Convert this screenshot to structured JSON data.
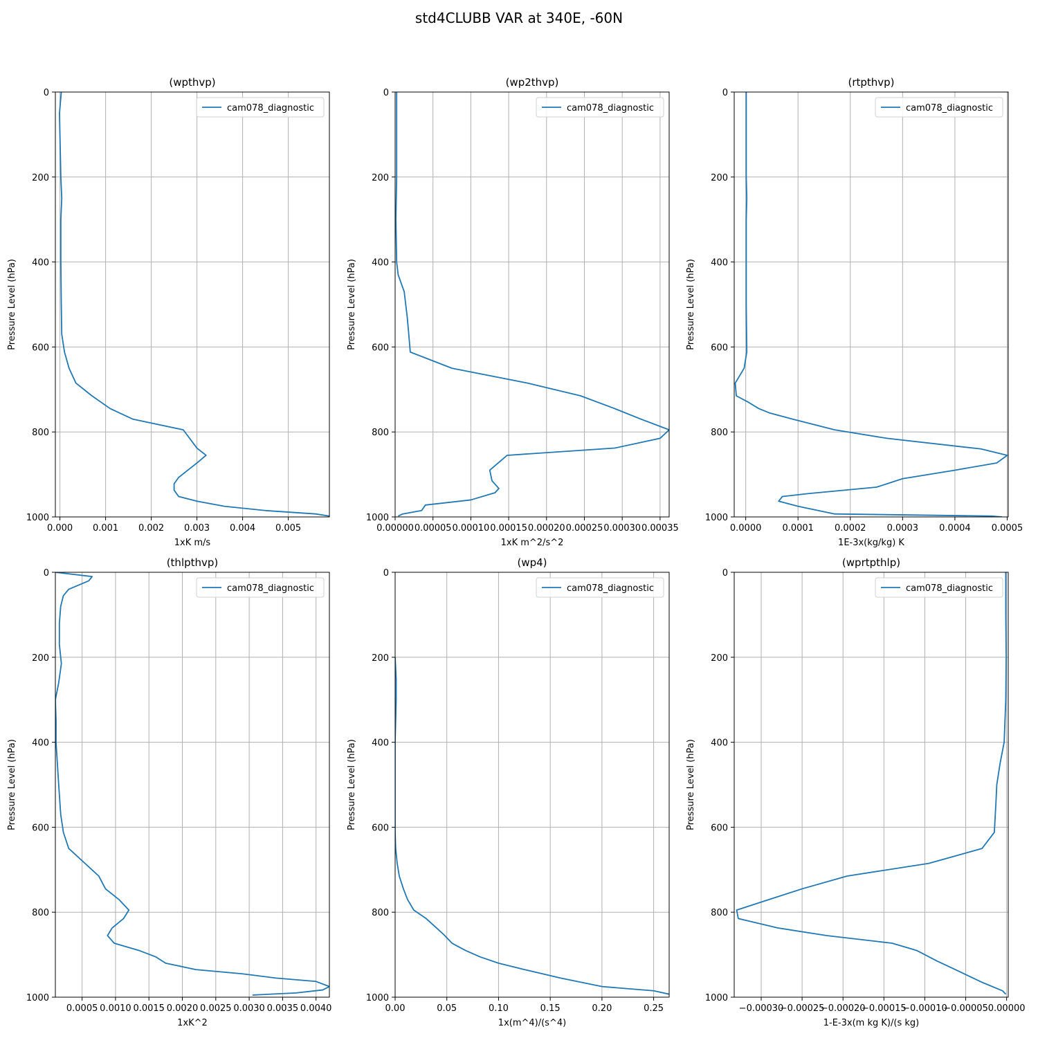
{
  "title": "std4CLUBB VAR at 340E, -60N",
  "chart_data": [
    {
      "type": "line",
      "title": "(wpthvp)",
      "xlabel": "1xK m/s",
      "ylabel": "Pressure Level (hPa)",
      "xlim": [
        -0.0001,
        0.0059
      ],
      "ylim": [
        1000,
        0
      ],
      "xticks": [
        0.0,
        0.001,
        0.002,
        0.003,
        0.004,
        0.005
      ],
      "xtick_labels": [
        "0.000",
        "0.001",
        "0.002",
        "0.003",
        "0.004",
        "0.005"
      ],
      "yticks": [
        0,
        200,
        400,
        600,
        800,
        1000
      ],
      "grid": true,
      "legend_position": "top-right",
      "series": [
        {
          "name": "cam078_diagnostic",
          "x": [
            3e-05,
            -1e-05,
            2e-05,
            4e-05,
            2e-05,
            2e-05,
            3e-05,
            4e-05,
            0.0001,
            0.0002,
            0.00035,
            0.0007,
            0.0011,
            0.0016,
            0.0027,
            0.003,
            0.0032,
            0.003,
            0.0028,
            0.0026,
            0.0025,
            0.0025,
            0.0026,
            0.003,
            0.0036,
            0.0045,
            0.0056,
            0.0059
          ],
          "y": [
            0,
            50,
            200,
            250,
            300,
            400,
            500,
            570,
            612,
            650,
            685,
            715,
            745,
            770,
            795,
            838,
            855,
            873,
            890,
            907,
            922,
            937,
            952,
            963,
            975,
            985,
            993,
            998
          ]
        }
      ]
    },
    {
      "type": "line",
      "title": "(wp2thvp)",
      "xlabel": "1xK m^2/s^2",
      "ylabel": "Pressure Level (hPa)",
      "xlim": [
        0.0,
        0.000362
      ],
      "ylim": [
        1000,
        0
      ],
      "xticks": [
        0.0,
        5e-05,
        0.0001,
        0.00015,
        0.0002,
        0.00025,
        0.0003,
        0.00035
      ],
      "xtick_labels": [
        "0.00000",
        "0.00005",
        "0.00010",
        "0.00015",
        "0.00020",
        "0.00025",
        "0.00030",
        "0.00035"
      ],
      "yticks": [
        0,
        200,
        400,
        600,
        800,
        1000
      ],
      "grid": true,
      "legend_position": "top-right",
      "series": [
        {
          "name": "cam078_diagnostic",
          "x": [
            2e-06,
            2e-06,
            2e-06,
            1.5e-06,
            1e-06,
            2e-06,
            4e-06,
            1.2e-05,
            1.6e-05,
            1.8e-05,
            2e-05,
            7.5e-05,
            0.000175,
            0.000245,
            0.00029,
            0.000325,
            0.000362,
            0.00035,
            0.00029,
            0.000148,
            0.000125,
            0.000128,
            0.000137,
            0.000132,
            0.0001,
            4e-05,
            3.5e-05,
            1e-05,
            4e-06
          ],
          "y": [
            0,
            100,
            200,
            250,
            300,
            400,
            430,
            470,
            530,
            570,
            612,
            650,
            685,
            715,
            745,
            770,
            795,
            815,
            838,
            855,
            890,
            915,
            933,
            943,
            960,
            972,
            985,
            993,
            998
          ]
        }
      ]
    },
    {
      "type": "line",
      "title": "(rtpthvp)",
      "xlabel": "1E-3x(kg/kg) K",
      "ylabel": "Pressure Level (hPa)",
      "xlim": [
        -2.2e-05,
        0.000502
      ],
      "ylim": [
        1000,
        0
      ],
      "xticks": [
        0.0,
        0.0001,
        0.0002,
        0.0003,
        0.0004,
        0.0005
      ],
      "xtick_labels": [
        "0.0000",
        "0.0001",
        "0.0002",
        "0.0003",
        "0.0004",
        "0.0005"
      ],
      "yticks": [
        0,
        200,
        400,
        600,
        800,
        1000
      ],
      "grid": true,
      "legend_position": "top-right",
      "series": [
        {
          "name": "cam078_diagnostic",
          "x": [
            1e-06,
            1e-06,
            1e-06,
            2e-06,
            1e-06,
            1e-06,
            1e-06,
            2e-06,
            -3e-06,
            -2e-05,
            -1.8e-05,
            5e-06,
            2.5e-05,
            4.5e-05,
            9e-05,
            0.00017,
            0.00027,
            0.00045,
            0.0005,
            0.00048,
            0.0004,
            0.0003,
            0.00025,
            0.00012,
            7e-05,
            6.3e-05,
            0.0001,
            0.00017,
            0.00047,
            0.00049
          ],
          "y": [
            0,
            100,
            200,
            250,
            300,
            400,
            500,
            612,
            650,
            685,
            715,
            730,
            745,
            755,
            770,
            795,
            815,
            840,
            855,
            873,
            890,
            910,
            930,
            945,
            952,
            963,
            975,
            993,
            998,
            1000
          ]
        }
      ]
    },
    {
      "type": "line",
      "title": "(thlpthvp)",
      "xlabel": "1xK^2",
      "ylabel": "Pressure Level (hPa)",
      "xlim": [
        0.0001,
        0.0042
      ],
      "ylim": [
        1000,
        0
      ],
      "xticks": [
        0.0005,
        0.001,
        0.0015,
        0.002,
        0.0025,
        0.003,
        0.0035,
        0.004
      ],
      "xtick_labels": [
        "0.0005",
        "0.0010",
        "0.0015",
        "0.0020",
        "0.0025",
        "0.0030",
        "0.0035",
        "0.0040"
      ],
      "yticks": [
        0,
        200,
        400,
        600,
        800,
        1000
      ],
      "grid": true,
      "legend_position": "top-right",
      "series": [
        {
          "name": "cam078_diagnostic",
          "x": [
            0.0001,
            0.00065,
            0.0006,
            0.00045,
            0.0003,
            0.00022,
            0.00018,
            0.00016,
            0.00016,
            0.00019,
            0.00015,
            0.0001,
            0.00011,
            0.00011,
            0.00015,
            0.00018,
            0.00022,
            0.0003,
            0.00075,
            0.00085,
            0.00105,
            0.0012,
            0.00112,
            0.00095,
            0.00088,
            0.00098,
            0.00135,
            0.0016,
            0.00175,
            0.0022,
            0.0029,
            0.0034,
            0.004,
            0.0042,
            0.0041,
            0.0037,
            0.00305
          ],
          "y": [
            0,
            10,
            20,
            30,
            40,
            55,
            80,
            120,
            170,
            215,
            260,
            300,
            350,
            400,
            500,
            570,
            612,
            650,
            715,
            745,
            770,
            795,
            815,
            837,
            855,
            873,
            890,
            905,
            920,
            935,
            945,
            955,
            963,
            975,
            983,
            990,
            995
          ]
        }
      ]
    },
    {
      "type": "line",
      "title": "(wp4)",
      "xlabel": "1x(m^4)/(s^4)",
      "ylabel": "Pressure Level (hPa)",
      "xlim": [
        0.0,
        0.265
      ],
      "ylim": [
        1000,
        0
      ],
      "xticks": [
        0.0,
        0.05,
        0.1,
        0.15,
        0.2,
        0.25
      ],
      "xtick_labels": [
        "0.00",
        "0.05",
        "0.10",
        "0.15",
        "0.20",
        "0.25"
      ],
      "yticks": [
        0,
        200,
        400,
        600,
        800,
        1000
      ],
      "grid": true,
      "legend_position": "top-right",
      "series": [
        {
          "name": "cam078_diagnostic",
          "x": [
            0.0,
            0.001,
            0.001,
            0.0,
            0.0,
            0.0,
            0.0,
            0.0,
            0.0005,
            0.002,
            0.004,
            0.008,
            0.012,
            0.018,
            0.03,
            0.04,
            0.048,
            0.055,
            0.068,
            0.082,
            0.1,
            0.125,
            0.16,
            0.2,
            0.25,
            0.265
          ],
          "y": [
            200,
            250,
            300,
            400,
            500,
            570,
            600,
            612,
            650,
            685,
            715,
            745,
            770,
            795,
            815,
            837,
            855,
            873,
            890,
            905,
            920,
            935,
            955,
            975,
            985,
            993
          ]
        }
      ]
    },
    {
      "type": "line",
      "title": "(wprtpthlp)",
      "xlabel": "1-E-3x(m kg K)/(s kg)",
      "ylabel": "Pressure Level (hPa)",
      "xlim": [
        -0.000333,
        2e-06
      ],
      "ylim": [
        1000,
        0
      ],
      "xticks": [
        -0.0003,
        -0.00025,
        -0.0002,
        -0.00015,
        -0.0001,
        -5e-05,
        0.0
      ],
      "xtick_labels": [
        "−0.00030",
        "−0.00025",
        "−0.00020",
        "−0.00015",
        "−0.00010",
        "−0.00005",
        "0.00000"
      ],
      "yticks": [
        0,
        200,
        400,
        600,
        800,
        1000
      ],
      "grid": true,
      "legend_position": "top-right",
      "series": [
        {
          "name": "cam078_diagnostic",
          "x": [
            -1e-06,
            -1e-06,
            -5e-07,
            -1e-06,
            -3e-06,
            -8e-06,
            -1.2e-05,
            -1.3e-05,
            -1.5e-05,
            -3e-05,
            -9.5e-05,
            -0.000195,
            -0.00025,
            -0.00029,
            -0.00033,
            -0.000328,
            -0.00028,
            -0.00022,
            -0.00014,
            -0.00011,
            -8.5e-05,
            -6.5e-05,
            -3e-05,
            -5e-06,
            -1e-06
          ],
          "y": [
            0,
            100,
            200,
            300,
            400,
            450,
            500,
            540,
            612,
            650,
            685,
            715,
            745,
            770,
            795,
            815,
            837,
            855,
            873,
            890,
            915,
            933,
            965,
            985,
            993
          ]
        }
      ]
    }
  ]
}
